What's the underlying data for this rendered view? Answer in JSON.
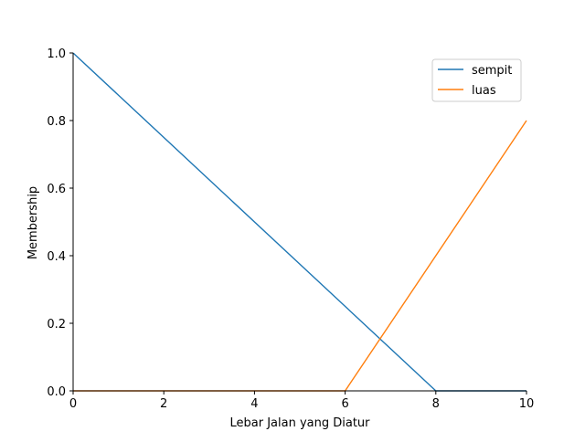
{
  "chart_data": {
    "type": "line",
    "title": "",
    "xlabel": "Lebar Jalan yang Diatur",
    "ylabel": "Membership",
    "xlim": [
      0,
      10
    ],
    "ylim": [
      0,
      1
    ],
    "xticks": [
      0,
      2,
      4,
      6,
      8,
      10
    ],
    "yticks": [
      0.0,
      0.2,
      0.4,
      0.6,
      0.8,
      1.0
    ],
    "xtick_labels": [
      "0",
      "2",
      "4",
      "6",
      "8",
      "10"
    ],
    "ytick_labels": [
      "0.0",
      "0.2",
      "0.4",
      "0.6",
      "0.8",
      "1.0"
    ],
    "grid": false,
    "legend_position": "top-right",
    "series": [
      {
        "name": "sempit",
        "color": "#1f77b4",
        "x": [
          0,
          8,
          10
        ],
        "y": [
          1.0,
          0.0,
          0.0
        ]
      },
      {
        "name": "luas",
        "color": "#ff7f0e",
        "x": [
          0,
          6,
          10
        ],
        "y": [
          0.0,
          0.0,
          0.8
        ]
      }
    ]
  }
}
